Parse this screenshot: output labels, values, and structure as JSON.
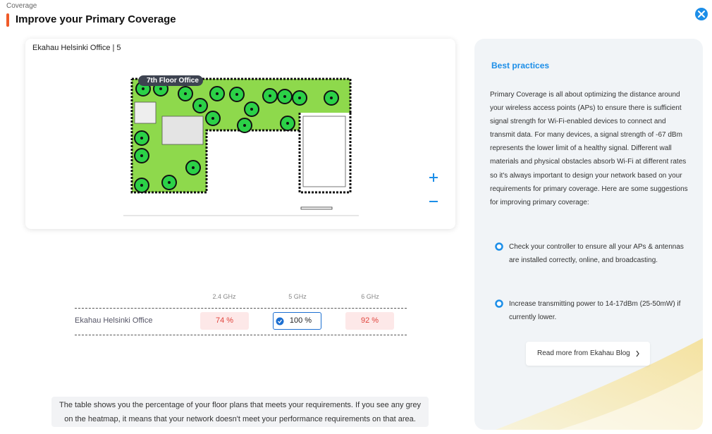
{
  "header": {
    "section": "Coverage",
    "title": "Improve your Primary Coverage"
  },
  "floor_plan": {
    "label": "Ekahau Helsinki Office | 5",
    "floor_tag": "7th Floor Office"
  },
  "table": {
    "columns": [
      "2.4 GHz",
      "5 GHz",
      "6 GHz"
    ],
    "rows": [
      [
        "Ekahau Helsinki Office",
        "74 %",
        "100 %",
        "92 %"
      ]
    ]
  },
  "note": "The table shows you the percentage of your floor plans that meets your requirements. If you see any grey on the heatmap, it means that your network doesn't meet your performance requirements on that area.",
  "best_practices": {
    "title": "Best practices",
    "intro": "Primary Coverage is all about optimizing the distance around your wireless access points (APs) to ensure there is sufficient signal strength for Wi-Fi-enabled devices to connect and transmit data. For many devices, a signal strength of -67 dBm represents the lower limit of a healthy signal. Different wall materials and physical obstacles absorb Wi-Fi at different rates so it's always important to design your network based on your requirements for primary coverage. Here are some suggestions for improving primary coverage:",
    "tips": [
      "Check your controller to ensure all your APs & antennas are installed correctly, online, and broadcasting.",
      "Increase transmitting power to 14-17dBm (25-50mW) if currently lower."
    ],
    "link": "Read more from Ekahau Blog"
  }
}
